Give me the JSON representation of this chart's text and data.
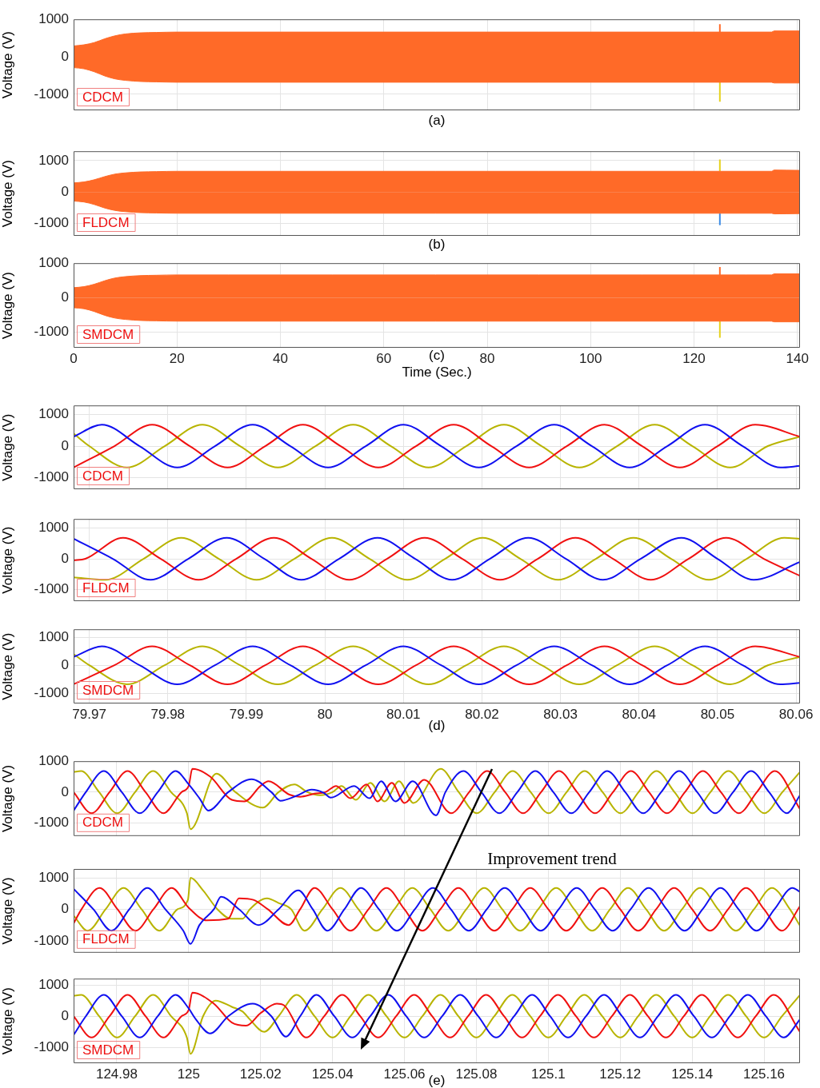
{
  "chart_data": [
    {
      "type": "area",
      "ylabel": "Voltage (V)",
      "annotations": [
        "CDCM",
        "(a)"
      ],
      "x": [
        0,
        2,
        4,
        6,
        8,
        10,
        13,
        16,
        20,
        30,
        40,
        50,
        60,
        70,
        80,
        90,
        100,
        110,
        120,
        130,
        135,
        135.5,
        140.5
      ],
      "xlim": [
        0,
        140.5
      ],
      "xticks": [
        0,
        20,
        40,
        60,
        80,
        100,
        120,
        140
      ],
      "ylim": [
        -1430,
        1000
      ],
      "yticks": [
        -1000,
        0,
        1000
      ],
      "grid": true,
      "tick_labels": "y",
      "series": [
        {
          "color": "#ff6a28",
          "values": [
            290,
            320,
            380,
            480,
            560,
            610,
            640,
            650,
            660,
            660,
            660,
            660,
            660,
            660,
            660,
            660,
            660,
            660,
            660,
            660,
            660,
            690,
            690
          ]
        },
        {
          "color": "#ff6a28",
          "values": [
            -290,
            -320,
            -400,
            -510,
            -590,
            -630,
            -660,
            -670,
            -680,
            -680,
            -680,
            -680,
            -680,
            -680,
            -680,
            -680,
            -680,
            -680,
            -680,
            -680,
            -680,
            -700,
            -700
          ]
        },
        {
          "type": "line",
          "color": "#ff6a28",
          "x": [
            125,
            125
          ],
          "values": [
            660,
            870
          ]
        },
        {
          "type": "line",
          "color": "#e6d21e",
          "x": [
            125,
            125
          ],
          "values": [
            -680,
            -1200
          ]
        }
      ]
    },
    {
      "type": "area",
      "ylabel": "Voltage (V)",
      "annotations": [
        "FLDCM",
        "(b)"
      ],
      "x": [
        0,
        2,
        4,
        6,
        8,
        10,
        13,
        16,
        20,
        30,
        40,
        50,
        60,
        70,
        80,
        90,
        100,
        110,
        120,
        130,
        135,
        135.5,
        140.5
      ],
      "xlim": [
        0,
        140.5
      ],
      "xticks": [
        0,
        20,
        40,
        60,
        80,
        100,
        120,
        140
      ],
      "ylim": [
        -1400,
        1300
      ],
      "yticks": [
        -1000,
        0,
        1000
      ],
      "grid": true,
      "tick_labels": "y",
      "series": [
        {
          "color": "#ff6a28",
          "values": [
            290,
            320,
            390,
            490,
            570,
            610,
            640,
            650,
            660,
            660,
            660,
            660,
            660,
            660,
            660,
            660,
            660,
            660,
            660,
            660,
            660,
            700,
            690
          ]
        },
        {
          "color": "#ff6a28",
          "values": [
            -290,
            -320,
            -400,
            -510,
            -590,
            -630,
            -660,
            -670,
            -680,
            -680,
            -680,
            -680,
            -680,
            -680,
            -680,
            -680,
            -680,
            -680,
            -680,
            -680,
            -680,
            -700,
            -690
          ]
        },
        {
          "type": "line",
          "color": "#e6d21e",
          "x": [
            125,
            125
          ],
          "values": [
            660,
            1040
          ]
        },
        {
          "type": "line",
          "color": "#3c8ce6",
          "x": [
            125,
            125
          ],
          "values": [
            -680,
            -1060
          ]
        }
      ]
    },
    {
      "type": "area",
      "xlabel": "Time (Sec.)",
      "ylabel": "Voltage (V)",
      "annotations": [
        "SMDCM",
        "(c)"
      ],
      "x": [
        0,
        2,
        4,
        6,
        8,
        10,
        13,
        16,
        20,
        30,
        40,
        50,
        60,
        70,
        80,
        90,
        100,
        110,
        120,
        130,
        135,
        135.5,
        140.5
      ],
      "xlim": [
        0,
        140.5
      ],
      "xticks": [
        0,
        20,
        40,
        60,
        80,
        100,
        120,
        140
      ],
      "ylim": [
        -1450,
        1000
      ],
      "yticks": [
        -1000,
        0,
        1000
      ],
      "grid": true,
      "series": [
        {
          "color": "#ff6a28",
          "values": [
            290,
            320,
            390,
            490,
            570,
            610,
            640,
            650,
            660,
            660,
            660,
            660,
            660,
            660,
            660,
            660,
            660,
            660,
            660,
            660,
            660,
            690,
            690
          ]
        },
        {
          "color": "#ff6a28",
          "values": [
            -290,
            -320,
            -400,
            -510,
            -590,
            -630,
            -660,
            -670,
            -680,
            -680,
            -680,
            -680,
            -680,
            -680,
            -680,
            -680,
            -680,
            -680,
            -680,
            -680,
            -680,
            -700,
            -700
          ]
        },
        {
          "type": "line",
          "color": "#ff6a28",
          "x": [
            125,
            125
          ],
          "values": [
            660,
            890
          ]
        },
        {
          "type": "line",
          "color": "#e6d21e",
          "x": [
            125,
            125
          ],
          "values": [
            -680,
            -1160
          ]
        }
      ]
    },
    {
      "type": "line",
      "ylabel": "Voltage (V)",
      "annotations": [
        "CDCM"
      ],
      "xlim": [
        79.968,
        80.0605
      ],
      "xticks": [
        79.97,
        79.98,
        79.99,
        80,
        80.01,
        80.02,
        80.03,
        80.04,
        80.05,
        80.06
      ],
      "ylim": [
        -1370,
        1290
      ],
      "yticks": [
        -1000,
        0,
        1000
      ],
      "grid": true,
      "tick_labels": "y",
      "series": [
        {
          "color": "#1010f0",
          "x": [
            79.968,
            79.9716,
            79.9764,
            79.9812,
            79.986,
            79.9908,
            79.9956,
            80.0004,
            80.0052,
            80.01,
            80.0148,
            80.0196,
            80.0244,
            80.0292,
            80.034,
            80.0388,
            80.0436,
            80.0484,
            80.0532,
            80.058,
            80.0605
          ],
          "values": [
            300,
            680,
            0,
            -680,
            0,
            680,
            0,
            -680,
            0,
            680,
            0,
            -680,
            0,
            680,
            0,
            -680,
            0,
            680,
            0,
            -680,
            -630
          ]
        },
        {
          "color": "#f01010",
          "x": [
            79.968,
            79.9732,
            79.978,
            79.9828,
            79.9876,
            79.9924,
            79.9972,
            80.002,
            80.0068,
            80.0116,
            80.0164,
            80.0212,
            80.026,
            80.0308,
            80.0356,
            80.0404,
            80.0452,
            80.05,
            80.0548,
            80.0605
          ],
          "values": [
            -680,
            0,
            680,
            0,
            -680,
            0,
            680,
            0,
            -680,
            0,
            680,
            0,
            -680,
            0,
            680,
            0,
            -680,
            0,
            680,
            300
          ]
        },
        {
          "color": "#b8b400",
          "x": [
            79.968,
            79.97,
            79.9748,
            79.9796,
            79.9844,
            79.9892,
            79.994,
            79.9988,
            80.0036,
            80.0084,
            80.0132,
            80.018,
            80.0228,
            80.0276,
            80.0324,
            80.0372,
            80.042,
            80.0468,
            80.0516,
            80.0564,
            80.0605
          ],
          "values": [
            400,
            0,
            -680,
            0,
            680,
            0,
            -680,
            0,
            680,
            0,
            -680,
            0,
            680,
            0,
            -680,
            0,
            680,
            0,
            -680,
            0,
            300
          ]
        }
      ]
    },
    {
      "type": "line",
      "ylabel": "Voltage (V)",
      "annotations": [
        "FLDCM"
      ],
      "xlim": [
        79.968,
        80.0605
      ],
      "xticks": [
        79.97,
        79.98,
        79.99,
        80,
        80.01,
        80.02,
        80.03,
        80.04,
        80.05,
        80.06
      ],
      "ylim": [
        -1370,
        1290
      ],
      "yticks": [
        -1000,
        0,
        1000
      ],
      "grid": true,
      "tick_labels": "y",
      "series": [
        {
          "color": "#1010f0",
          "x": [
            79.968,
            79.973,
            79.9778,
            79.9826,
            79.9875,
            79.9923,
            79.997,
            80.0018,
            80.0067,
            80.0115,
            80.0162,
            80.021,
            80.0259,
            80.0307,
            80.0354,
            80.0402,
            80.0454,
            80.05,
            80.0546,
            80.0605
          ],
          "values": [
            650,
            0,
            -680,
            0,
            680,
            0,
            -680,
            0,
            680,
            0,
            -680,
            0,
            680,
            0,
            -680,
            0,
            680,
            0,
            -680,
            -100
          ]
        },
        {
          "color": "#f01010",
          "x": [
            79.968,
            79.9695,
            79.9743,
            79.9791,
            79.9839,
            79.9887,
            79.9935,
            79.9983,
            80.0031,
            80.0079,
            80.0127,
            80.0175,
            80.0223,
            80.0271,
            80.0319,
            80.0367,
            80.0415,
            80.0463,
            80.0511,
            80.0559,
            80.0605
          ],
          "values": [
            -50,
            0,
            680,
            0,
            -680,
            0,
            680,
            0,
            -680,
            0,
            680,
            0,
            -680,
            0,
            680,
            0,
            -680,
            0,
            680,
            0,
            -550
          ]
        },
        {
          "color": "#b8b400",
          "x": [
            79.968,
            79.9721,
            79.9769,
            79.9817,
            79.9865,
            79.9913,
            79.9961,
            80.0009,
            80.0057,
            80.0105,
            80.0153,
            80.0201,
            80.0249,
            80.0297,
            80.0345,
            80.0393,
            80.0441,
            80.0489,
            80.0537,
            80.0585,
            80.0605
          ],
          "values": [
            -600,
            -680,
            0,
            680,
            0,
            -680,
            0,
            680,
            0,
            -680,
            0,
            680,
            0,
            -680,
            0,
            680,
            0,
            -680,
            0,
            680,
            650
          ]
        }
      ]
    },
    {
      "type": "line",
      "ylabel": "Voltage (V)",
      "annotations": [
        "SMDCM",
        "(d)"
      ],
      "xlim": [
        79.968,
        80.0605
      ],
      "xticks": [
        79.97,
        79.98,
        79.99,
        80,
        80.01,
        80.02,
        80.03,
        80.04,
        80.05,
        80.06
      ],
      "ylim": [
        -1370,
        1290
      ],
      "yticks": [
        -1000,
        0,
        1000
      ],
      "grid": true,
      "series": [
        {
          "color": "#1010f0",
          "x": [
            79.968,
            79.9716,
            79.9764,
            79.9812,
            79.986,
            79.9908,
            79.9956,
            80.0004,
            80.0052,
            80.01,
            80.0148,
            80.0196,
            80.0244,
            80.0292,
            80.034,
            80.0388,
            80.0436,
            80.0484,
            80.0532,
            80.058,
            80.0605
          ],
          "values": [
            300,
            680,
            0,
            -680,
            0,
            680,
            0,
            -680,
            0,
            680,
            0,
            -680,
            0,
            680,
            0,
            -680,
            0,
            680,
            0,
            -680,
            -630
          ]
        },
        {
          "color": "#f01010",
          "x": [
            79.968,
            79.9732,
            79.978,
            79.9828,
            79.9876,
            79.9924,
            79.9972,
            80.002,
            80.0068,
            80.0116,
            80.0164,
            80.0212,
            80.026,
            80.0308,
            80.0356,
            80.0404,
            80.0452,
            80.05,
            80.0548,
            80.0605
          ],
          "values": [
            -680,
            0,
            680,
            0,
            -680,
            0,
            680,
            0,
            -680,
            0,
            680,
            0,
            -680,
            0,
            680,
            0,
            -680,
            0,
            680,
            300
          ]
        },
        {
          "color": "#b8b400",
          "x": [
            79.968,
            79.97,
            79.9748,
            79.9796,
            79.9844,
            79.9892,
            79.994,
            79.9988,
            80.0036,
            80.0084,
            80.0132,
            80.018,
            80.0228,
            80.0276,
            80.0324,
            80.0372,
            80.042,
            80.0468,
            80.0516,
            80.0564,
            80.0605
          ],
          "values": [
            400,
            0,
            -680,
            0,
            680,
            0,
            -680,
            0,
            680,
            0,
            -680,
            0,
            680,
            0,
            -680,
            0,
            680,
            0,
            -680,
            0,
            300
          ]
        }
      ]
    },
    {
      "type": "line",
      "ylabel": "Voltage (V)",
      "annotations": [
        "CDCM"
      ],
      "xlim": [
        124.968,
        125.17
      ],
      "xticks": [
        124.98,
        125,
        125.02,
        125.04,
        125.06,
        125.08,
        125.1,
        125.12,
        125.14,
        125.16
      ],
      "ylim": [
        -1420,
        1000
      ],
      "yticks": [
        -1000,
        0,
        1000
      ],
      "grid": true,
      "tick_labels": "y",
      "series": [
        {
          "color": "#1010f0",
          "x": [
            124.968,
            124.9714,
            124.9764,
            124.9814,
            124.9864,
            124.9914,
            124.9964,
            125.0,
            125.003,
            125.0055,
            125.011,
            125.0175,
            125.023,
            125.0255,
            125.03,
            125.0342,
            125.0375,
            125.0395,
            125.046,
            125.0503,
            125.0535,
            125.0575,
            125.0623,
            125.0688,
            125.0714,
            125.0764,
            125.0814,
            125.0864,
            125.0914,
            125.0964,
            125.1014,
            125.1064,
            125.1114,
            125.1164,
            125.1214,
            125.1264,
            125.1314,
            125.1364,
            125.1414,
            125.1464,
            125.1514,
            125.1564,
            125.1614,
            125.1664,
            125.17
          ],
          "values": [
            -600,
            0,
            680,
            0,
            -680,
            0,
            680,
            250,
            -200,
            -600,
            0,
            420,
            0,
            -280,
            -120,
            80,
            -20,
            -180,
            200,
            -200,
            350,
            -300,
            350,
            -750,
            0,
            680,
            0,
            -680,
            0,
            680,
            0,
            -680,
            0,
            680,
            0,
            -680,
            0,
            680,
            0,
            -680,
            0,
            680,
            0,
            -680,
            -100
          ]
        },
        {
          "color": "#f01010",
          "x": [
            124.968,
            124.973,
            124.978,
            124.983,
            124.988,
            124.993,
            124.998,
            125.0,
            125.001,
            125.006,
            125.012,
            125.0155,
            125.02,
            125.0222,
            125.028,
            125.031,
            125.035,
            125.038,
            125.041,
            125.045,
            125.0495,
            125.0525,
            125.0565,
            125.06,
            125.0655,
            125.073,
            125.078,
            125.083,
            125.088,
            125.093,
            125.098,
            125.103,
            125.108,
            125.113,
            125.118,
            125.123,
            125.128,
            125.133,
            125.138,
            125.143,
            125.148,
            125.153,
            125.158,
            125.163,
            125.17
          ],
          "values": [
            0,
            -680,
            0,
            680,
            0,
            -680,
            0,
            200,
            750,
            500,
            -250,
            -300,
            200,
            350,
            -80,
            -150,
            -50,
            0,
            200,
            -200,
            250,
            -300,
            300,
            -350,
            400,
            -680,
            0,
            680,
            0,
            -680,
            0,
            680,
            0,
            -680,
            0,
            680,
            0,
            -680,
            0,
            680,
            0,
            -680,
            0,
            680,
            -550
          ]
        },
        {
          "color": "#b8b400",
          "x": [
            124.968,
            124.9701,
            124.9751,
            124.9801,
            124.9851,
            124.9901,
            124.9951,
            124.9995,
            125.0005,
            125.0077,
            125.013,
            125.0206,
            125.025,
            125.0294,
            125.033,
            125.0365,
            125.04,
            125.0425,
            125.0465,
            125.0505,
            125.0545,
            125.0585,
            125.0625,
            125.0701,
            125.0751,
            125.0801,
            125.0851,
            125.0901,
            125.0951,
            125.1001,
            125.1051,
            125.1101,
            125.1151,
            125.1201,
            125.1251,
            125.1301,
            125.1351,
            125.1401,
            125.1451,
            125.1501,
            125.1551,
            125.1601,
            125.1651,
            125.17
          ],
          "values": [
            650,
            680,
            0,
            -680,
            0,
            680,
            0,
            -680,
            -1200,
            600,
            0,
            -500,
            0,
            250,
            0,
            -100,
            0,
            200,
            -250,
            300,
            -300,
            350,
            -350,
            750,
            0,
            -680,
            0,
            680,
            0,
            -680,
            0,
            680,
            0,
            -680,
            0,
            680,
            0,
            -680,
            0,
            680,
            0,
            -680,
            0,
            650
          ]
        }
      ]
    },
    {
      "type": "line",
      "ylabel": "Voltage (V)",
      "annotations": [
        "FLDCM",
        "Improvement trend"
      ],
      "xlim": [
        124.968,
        125.17
      ],
      "xticks": [
        124.98,
        125,
        125.02,
        125.04,
        125.06,
        125.08,
        125.1,
        125.12,
        125.14,
        125.16
      ],
      "ylim": [
        -1380,
        1280
      ],
      "yticks": [
        -1000,
        0,
        1000
      ],
      "grid": true,
      "tick_labels": "y",
      "series": [
        {
          "color": "#1010f0",
          "x": [
            124.968,
            124.9735,
            124.9785,
            124.9835,
            124.9885,
            124.9935,
            124.9985,
            125.0005,
            125.003,
            125.007,
            125.009,
            125.014,
            125.0194,
            125.025,
            125.0305,
            125.0345,
            125.0386,
            125.0433,
            125.0479,
            125.0529,
            125.0579,
            125.0629,
            125.0679,
            125.0729,
            125.0779,
            125.0829,
            125.0879,
            125.0929,
            125.0979,
            125.1029,
            125.1079,
            125.1129,
            125.1179,
            125.1229,
            125.1279,
            125.1329,
            125.1379,
            125.1429,
            125.1479,
            125.1529,
            125.1579,
            125.1629,
            125.1679,
            125.17
          ],
          "values": [
            650,
            0,
            -680,
            0,
            680,
            0,
            -680,
            -1100,
            -500,
            0,
            400,
            0,
            -500,
            0,
            600,
            0,
            -680,
            0,
            680,
            0,
            -680,
            0,
            680,
            0,
            -680,
            0,
            680,
            0,
            -680,
            0,
            680,
            0,
            -680,
            0,
            680,
            0,
            -680,
            0,
            680,
            0,
            -680,
            0,
            680,
            550
          ]
        },
        {
          "color": "#f01010",
          "x": [
            124.968,
            124.9702,
            124.9752,
            124.9802,
            124.9852,
            124.9902,
            124.9953,
            125.0,
            125.005,
            125.011,
            125.014,
            125.018,
            125.022,
            125.0278,
            125.031,
            125.035,
            125.04,
            125.045,
            125.05,
            125.055,
            125.06,
            125.065,
            125.07,
            125.075,
            125.08,
            125.085,
            125.09,
            125.095,
            125.1,
            125.105,
            125.11,
            125.115,
            125.12,
            125.125,
            125.13,
            125.135,
            125.14,
            125.145,
            125.15,
            125.155,
            125.16,
            125.165,
            125.17
          ],
          "values": [
            -450,
            0,
            680,
            0,
            -680,
            0,
            680,
            50,
            -350,
            -300,
            350,
            300,
            0,
            -500,
            0,
            680,
            0,
            -680,
            0,
            680,
            0,
            -680,
            0,
            680,
            0,
            -680,
            0,
            680,
            0,
            -680,
            0,
            680,
            0,
            -680,
            0,
            680,
            0,
            -680,
            0,
            680,
            0,
            -680,
            100
          ]
        },
        {
          "color": "#b8b400",
          "x": [
            124.968,
            124.9719,
            124.9769,
            124.9819,
            124.9869,
            124.9919,
            124.9969,
            124.9998,
            125.0005,
            125.004,
            125.008,
            125.0118,
            125.015,
            125.017,
            125.0218,
            125.025,
            125.0285,
            125.0322,
            125.0372,
            125.0422,
            125.0472,
            125.0522,
            125.0572,
            125.0622,
            125.0672,
            125.0722,
            125.0772,
            125.0822,
            125.0872,
            125.0922,
            125.0972,
            125.1022,
            125.1072,
            125.1122,
            125.1172,
            125.1222,
            125.1272,
            125.1322,
            125.1372,
            125.1422,
            125.1472,
            125.1522,
            125.1572,
            125.1622,
            125.1672,
            125.17
          ],
          "values": [
            -200,
            -680,
            0,
            680,
            0,
            -680,
            0,
            300,
            1000,
            600,
            0,
            -300,
            -300,
            0,
            350,
            200,
            0,
            -680,
            0,
            680,
            0,
            -680,
            0,
            680,
            0,
            -680,
            0,
            680,
            0,
            -680,
            0,
            680,
            0,
            -680,
            0,
            680,
            0,
            -680,
            0,
            680,
            0,
            -680,
            0,
            680,
            0,
            -520
          ]
        }
      ]
    },
    {
      "type": "line",
      "ylabel": "Voltage (V)",
      "annotations": [
        "SMDCM",
        "(e)"
      ],
      "xlim": [
        124.968,
        125.17
      ],
      "xticks": [
        124.98,
        125,
        125.02,
        125.04,
        125.06,
        125.08,
        125.1,
        125.12,
        125.14,
        125.16
      ],
      "ylim": [
        -1500,
        1200
      ],
      "yticks": [
        -1000,
        0,
        1000
      ],
      "grid": true,
      "series": [
        {
          "color": "#1010f0",
          "x": [
            124.968,
            124.9714,
            124.9764,
            124.9814,
            124.9864,
            124.9914,
            124.9964,
            125.0,
            125.002,
            125.006,
            125.011,
            125.0178,
            125.023,
            125.027,
            125.031,
            125.0355,
            125.0405,
            125.0455,
            125.0505,
            125.0555,
            125.0605,
            125.0655,
            125.0705,
            125.0755,
            125.0805,
            125.0855,
            125.0905,
            125.0955,
            125.1005,
            125.1055,
            125.1105,
            125.1155,
            125.1205,
            125.1255,
            125.1305,
            125.1355,
            125.1405,
            125.1455,
            125.1505,
            125.1555,
            125.1605,
            125.1655,
            125.17
          ],
          "values": [
            -600,
            0,
            680,
            0,
            -680,
            0,
            680,
            250,
            -100,
            -550,
            0,
            400,
            0,
            -650,
            0,
            680,
            0,
            -680,
            0,
            680,
            0,
            -680,
            0,
            680,
            0,
            -680,
            0,
            680,
            0,
            -680,
            0,
            680,
            0,
            -680,
            0,
            680,
            0,
            -680,
            0,
            680,
            0,
            -680,
            -100
          ]
        },
        {
          "color": "#f01010",
          "x": [
            124.968,
            124.973,
            124.978,
            124.983,
            124.988,
            124.993,
            124.998,
            125.0,
            125.001,
            125.007,
            125.012,
            125.016,
            125.02,
            125.0245,
            125.0265,
            125.0327,
            125.0377,
            125.0427,
            125.0477,
            125.0527,
            125.0577,
            125.0627,
            125.0677,
            125.0727,
            125.0777,
            125.0827,
            125.0877,
            125.0927,
            125.0977,
            125.1027,
            125.1077,
            125.1127,
            125.1177,
            125.1227,
            125.1277,
            125.1327,
            125.1377,
            125.1427,
            125.1477,
            125.1527,
            125.1577,
            125.1627,
            125.17
          ],
          "values": [
            0,
            -680,
            0,
            680,
            0,
            -680,
            0,
            200,
            750,
            400,
            -200,
            -300,
            100,
            400,
            350,
            -680,
            0,
            680,
            0,
            -680,
            0,
            680,
            0,
            -680,
            0,
            680,
            0,
            -680,
            0,
            680,
            0,
            -680,
            0,
            680,
            0,
            -680,
            0,
            680,
            0,
            -680,
            0,
            680,
            -500
          ]
        },
        {
          "color": "#b8b400",
          "x": [
            124.968,
            124.9701,
            124.9751,
            124.9801,
            124.9851,
            124.9901,
            124.9951,
            124.9995,
            125.0005,
            125.004,
            125.0075,
            125.012,
            125.015,
            125.017,
            125.021,
            125.025,
            125.03,
            125.035,
            125.04,
            125.045,
            125.05,
            125.055,
            125.06,
            125.065,
            125.07,
            125.075,
            125.08,
            125.085,
            125.09,
            125.095,
            125.1,
            125.105,
            125.11,
            125.115,
            125.12,
            125.125,
            125.13,
            125.135,
            125.14,
            125.145,
            125.15,
            125.155,
            125.16,
            125.165,
            125.17
          ],
          "values": [
            650,
            680,
            0,
            -680,
            0,
            680,
            0,
            -680,
            -1200,
            0,
            500,
            300,
            150,
            -100,
            -500,
            0,
            680,
            0,
            -680,
            0,
            680,
            0,
            -680,
            0,
            680,
            0,
            -680,
            0,
            680,
            0,
            -680,
            0,
            680,
            0,
            -680,
            0,
            680,
            0,
            -680,
            0,
            680,
            0,
            -680,
            0,
            680
          ]
        }
      ]
    }
  ]
}
